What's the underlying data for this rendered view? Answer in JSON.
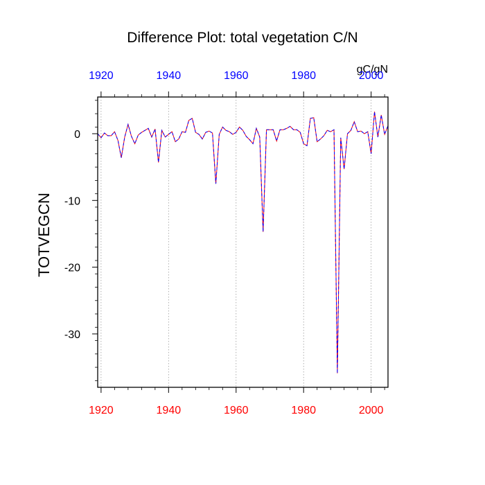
{
  "chart_data": {
    "type": "line",
    "title": "Difference Plot: total vegetation C/N",
    "units": "gC/gN",
    "ylabel": "TOTVEGCN",
    "xlabel": "",
    "xlim": [
      1919,
      2005
    ],
    "ylim": [
      -38,
      5.5
    ],
    "x_ticks": [
      1920,
      1940,
      1960,
      1980,
      2000
    ],
    "y_ticks": [
      0,
      -10,
      -20,
      -30
    ],
    "x_gridlines": true,
    "colors": {
      "bottom_ticks": "#ff0000",
      "top_ticks": "#0000ff",
      "series_solid": "#ff0000",
      "series_dashed": "#0000ff"
    },
    "series": [
      {
        "x": [
          1919,
          1920,
          1921,
          1922,
          1923,
          1924,
          1925,
          1926,
          1927,
          1928,
          1929,
          1930,
          1931,
          1932,
          1933,
          1934,
          1935,
          1936,
          1937,
          1938,
          1939,
          1940,
          1941,
          1942,
          1943,
          1944,
          1945,
          1946,
          1947,
          1948,
          1949,
          1950,
          1951,
          1952,
          1953,
          1954,
          1955,
          1956,
          1957,
          1958,
          1959,
          1960,
          1961,
          1962,
          1963,
          1964,
          1965,
          1966,
          1967,
          1968,
          1969,
          1970,
          1971,
          1972,
          1973,
          1974,
          1975,
          1976,
          1977,
          1978,
          1979,
          1980,
          1981,
          1982,
          1983,
          1984,
          1985,
          1986,
          1987,
          1988,
          1989,
          1990,
          1991,
          1992,
          1993,
          1994,
          1995,
          1996,
          1997,
          1998,
          1999,
          2000,
          2001,
          2002,
          2003,
          2004,
          2005
        ],
        "values": [
          0,
          -0.6,
          0.1,
          -0.3,
          -0.3,
          0.3,
          -1.0,
          -3.6,
          -0.5,
          1.4,
          -0.4,
          -1.5,
          -0.2,
          0.2,
          0.5,
          0.8,
          -0.5,
          0.7,
          -4.3,
          0.5,
          -0.5,
          -0.1,
          0.3,
          -1.2,
          -0.8,
          0.3,
          0.2,
          2.0,
          2.3,
          0.2,
          -0.1,
          -0.8,
          0.2,
          0.4,
          0.1,
          -7.5,
          -0.1,
          1.0,
          0.5,
          0.3,
          -0.1,
          0.2,
          1.0,
          0.5,
          -0.4,
          -0.9,
          -1.5,
          0.8,
          -0.5,
          -14.7,
          0.6,
          0.6,
          0.6,
          -1.1,
          0.6,
          0.6,
          0.8,
          1.1,
          0.6,
          0.6,
          0.2,
          -1.5,
          -1.8,
          2.3,
          2.4,
          -1.2,
          -0.8,
          -0.3,
          0.5,
          0.3,
          0.6,
          -35.9,
          -0.6,
          -5.3,
          0.0,
          0.5,
          1.8,
          0.3,
          0.4,
          0.0,
          0.3,
          -3.0,
          3.3,
          -0.5,
          2.8,
          -0.1,
          1.2
        ]
      }
    ]
  }
}
